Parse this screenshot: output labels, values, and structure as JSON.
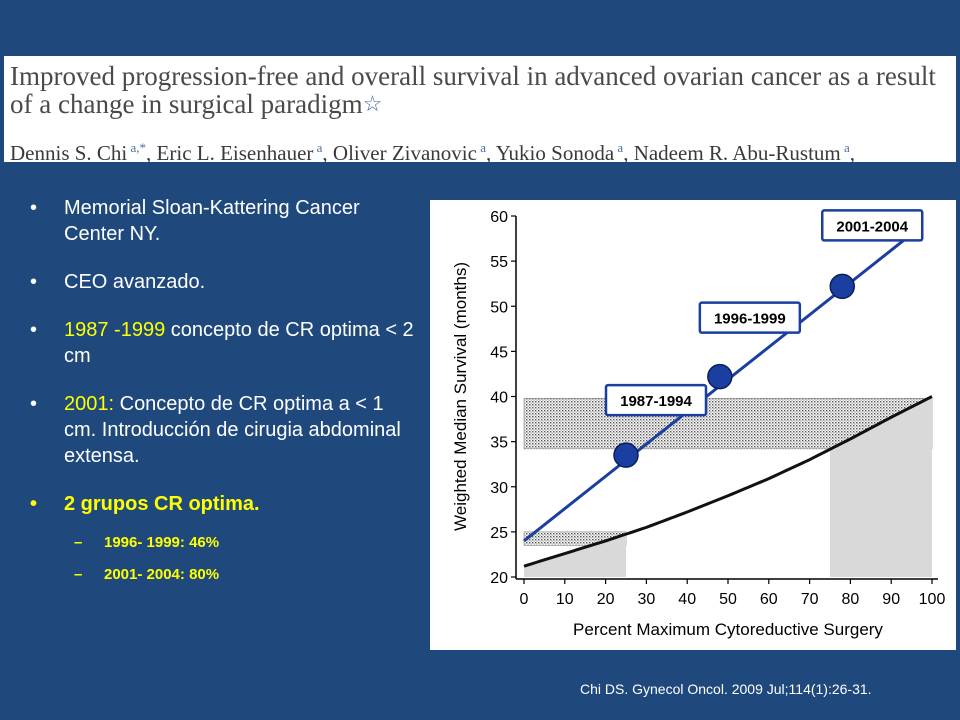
{
  "header": {
    "title": "Improved progression-free and overall survival in advanced ovarian cancer as a result of a change in surgical paradigm",
    "authors": [
      {
        "name": "Dennis S. Chi",
        "marks": " a,*"
      },
      {
        "name": ", Eric L. Eisenhauer",
        "marks": " a"
      },
      {
        "name": ", Oliver Zivanovic",
        "marks": " a"
      },
      {
        "name": ", Yukio Sonoda",
        "marks": " a"
      },
      {
        "name": ", Nadeem R. Abu-Rustum",
        "marks": " a"
      },
      {
        "name": ",",
        "marks": ""
      }
    ]
  },
  "bullets": {
    "b1": "Memorial Sloan-Kattering Cancer Center NY.",
    "b2": "CEO avanzado.",
    "b3_highlight": "1987 -1999",
    "b3_rest": " concepto de CR optima < 2 cm",
    "b4_highlight": "2001:",
    "b4_rest": " Concepto de CR optima a < 1 cm. Introducción de cirugia abdominal extensa.",
    "b5": "2 grupos CR optima.",
    "sub1": "1996- 1999: 46%",
    "sub2": "2001- 2004: 80%"
  },
  "citation": "Chi DS. Gynecol Oncol. 2009 Jul;114(1):26-31.",
  "chart_data": {
    "type": "line",
    "xlabel": "Percent Maximum Cytoreductive Surgery",
    "ylabel": "Weighted Median Survival (months)",
    "xlim": [
      0,
      100
    ],
    "ylim": [
      20,
      60
    ],
    "xticks": [
      0,
      10,
      20,
      30,
      40,
      50,
      60,
      70,
      80,
      90,
      100
    ],
    "yticks": [
      20,
      25,
      30,
      35,
      40,
      45,
      50,
      55,
      60
    ],
    "grid": false,
    "colors": {
      "blue": "#1a3fa0",
      "black": "#111111",
      "shade": "#d9d9d9"
    },
    "series": [
      {
        "style": "blue-line",
        "x": [
          0,
          95
        ],
        "y": [
          24,
          58
        ]
      },
      {
        "style": "black-curve",
        "x": [
          0,
          10,
          20,
          30,
          40,
          50,
          60,
          70,
          80,
          90,
          100
        ],
        "y": [
          21.2,
          22.6,
          24.0,
          25.5,
          27.2,
          29.0,
          30.9,
          33.0,
          35.3,
          37.7,
          40.0
        ]
      }
    ],
    "points": [
      {
        "label": "1987-1994",
        "x": 25,
        "y": 33.5
      },
      {
        "label": "1996-1999",
        "x": 48,
        "y": 42.2
      },
      {
        "label": "2001-2004",
        "x": 78,
        "y": 52.2
      }
    ],
    "bands": [
      {
        "x0": 0,
        "x1": 100,
        "y0": 34.2,
        "y1": 39.8,
        "style": "stipple"
      },
      {
        "x0": 0,
        "x1": 25,
        "y0": 23.5,
        "y1": 25,
        "style": "stipple"
      }
    ],
    "shaded": [
      {
        "x0": 0,
        "x1": 25
      },
      {
        "x0": 75,
        "x1": 100
      }
    ]
  }
}
